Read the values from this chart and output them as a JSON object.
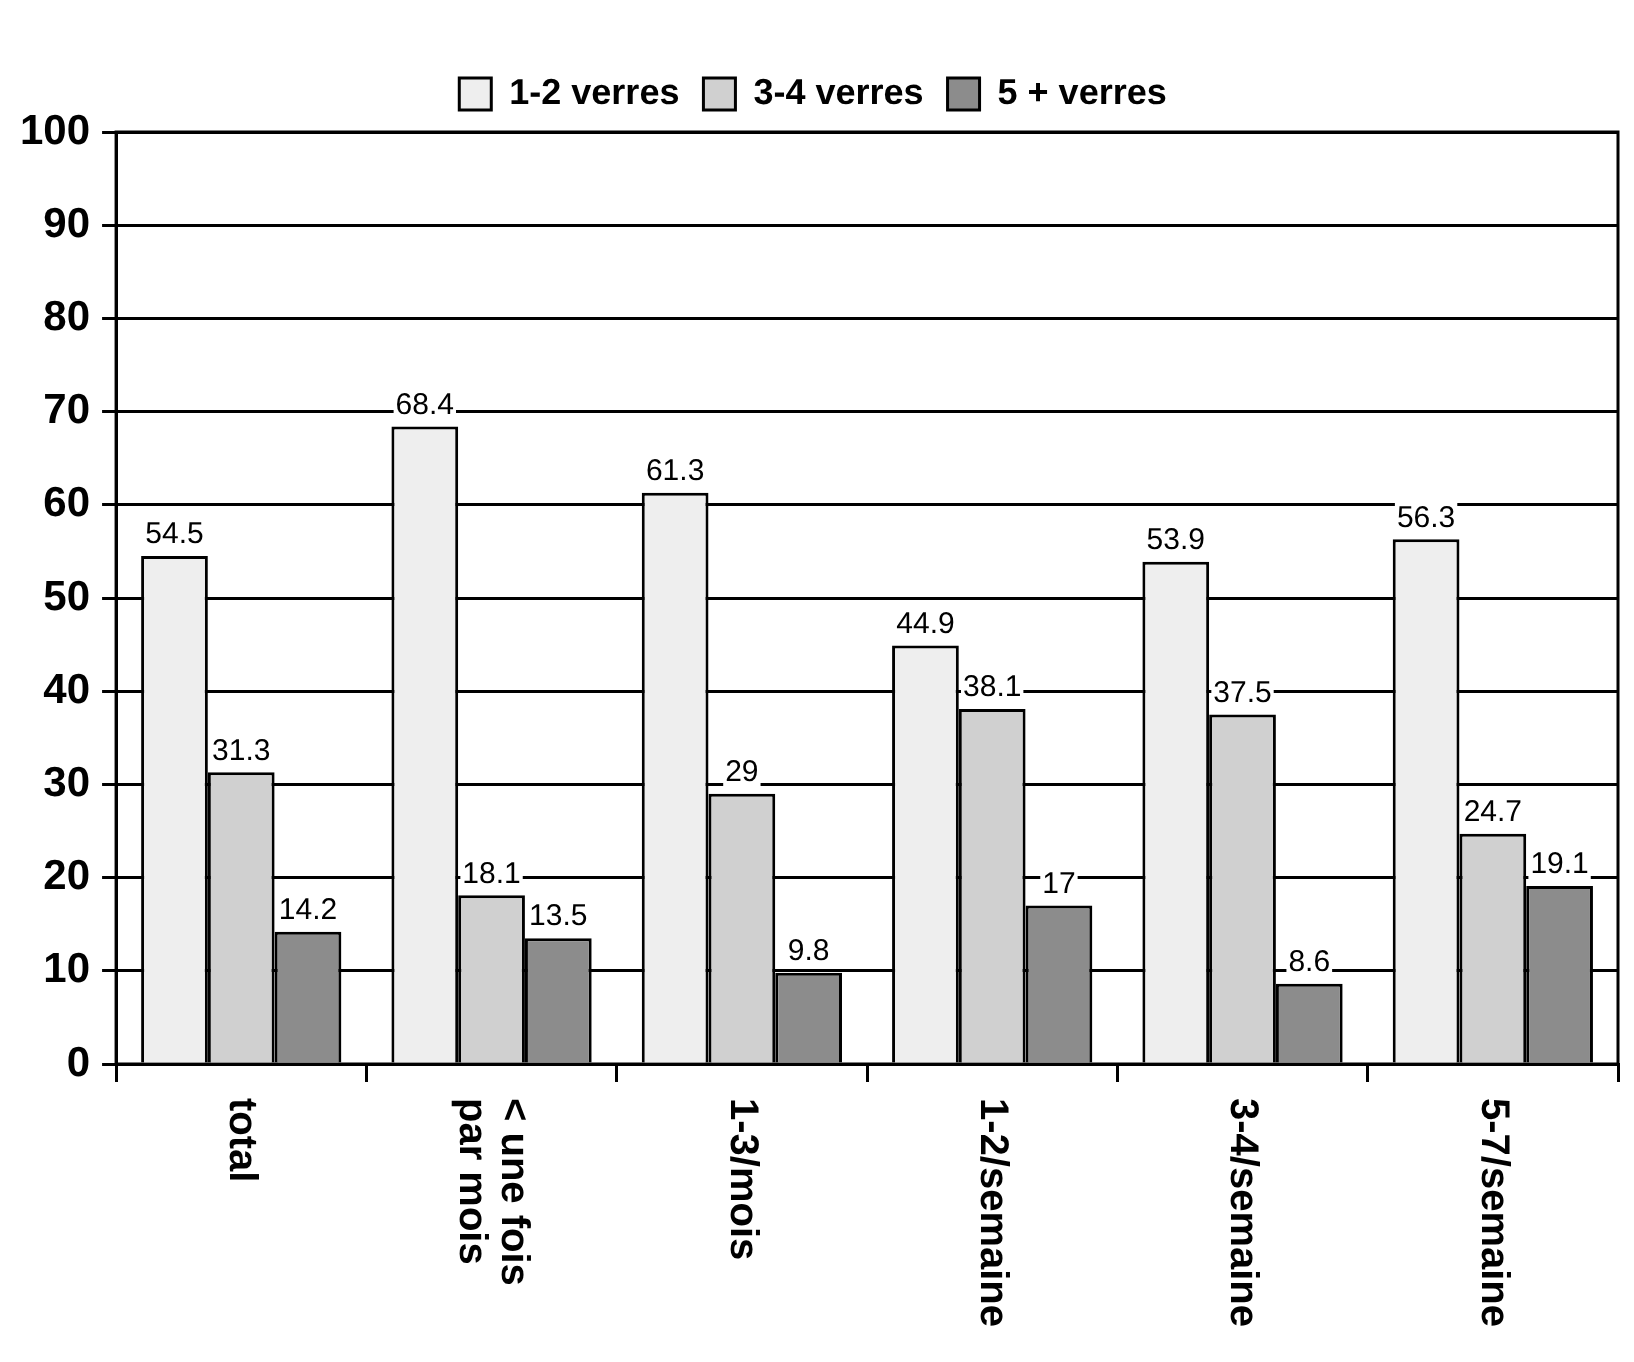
{
  "chart_data": {
    "type": "bar",
    "categories": [
      "total",
      "< une fois par mois",
      "1-3/mois",
      "1-2/semaine",
      "3-4/semaine",
      "5-7/semaine"
    ],
    "series": [
      {
        "name": "1-2 verres",
        "color": "#eeeeee",
        "values": [
          54.5,
          68.4,
          61.3,
          44.9,
          53.9,
          56.3
        ]
      },
      {
        "name": "3-4 verres",
        "color": "#d0d0d0",
        "values": [
          31.3,
          18.1,
          29,
          38.1,
          37.5,
          24.7
        ]
      },
      {
        "name": "5 + verres",
        "color": "#8c8c8c",
        "values": [
          14.2,
          13.5,
          9.8,
          17,
          8.6,
          19.1
        ]
      }
    ],
    "ylim": [
      0,
      100
    ],
    "yticks": [
      0,
      10,
      20,
      30,
      40,
      50,
      60,
      70,
      80,
      90,
      100
    ],
    "grid": "y",
    "legend": "top",
    "data_labels": true
  }
}
